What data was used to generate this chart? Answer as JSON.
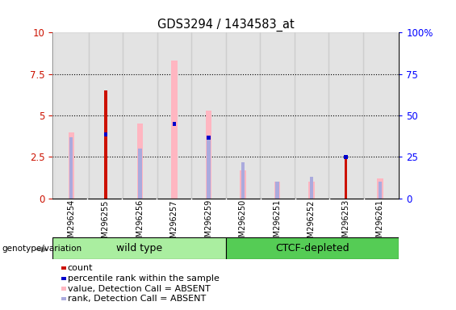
{
  "title": "GDS3294 / 1434583_at",
  "samples": [
    "GSM296254",
    "GSM296255",
    "GSM296256",
    "GSM296257",
    "GSM296259",
    "GSM296250",
    "GSM296251",
    "GSM296252",
    "GSM296253",
    "GSM296261"
  ],
  "groups": [
    "wild type",
    "wild type",
    "wild type",
    "wild type",
    "wild type",
    "CTCF-depleted",
    "CTCF-depleted",
    "CTCF-depleted",
    "CTCF-depleted",
    "CTCF-depleted"
  ],
  "count_values": [
    0.0,
    6.5,
    0.0,
    0.0,
    0.0,
    0.0,
    0.0,
    0.0,
    2.5,
    0.0
  ],
  "percentile_values": [
    0.0,
    4.0,
    0.0,
    4.6,
    3.8,
    0.0,
    0.0,
    0.0,
    2.6,
    0.0
  ],
  "value_absent": [
    4.0,
    0.0,
    4.5,
    8.3,
    5.3,
    1.7,
    1.0,
    1.0,
    0.0,
    1.2
  ],
  "rank_absent": [
    3.7,
    0.0,
    3.0,
    0.0,
    3.8,
    2.2,
    1.0,
    1.3,
    0.0,
    1.0
  ],
  "left_ylim": [
    0,
    10
  ],
  "right_ylim": [
    0,
    100
  ],
  "left_yticks": [
    0,
    2.5,
    5.0,
    7.5,
    10
  ],
  "right_yticks": [
    0,
    25,
    50,
    75,
    100
  ],
  "left_yticklabels": [
    "0",
    "2.5",
    "5",
    "7.5",
    "10"
  ],
  "right_yticklabels": [
    "0",
    "25",
    "50",
    "75",
    "100%"
  ],
  "count_color": "#CC1100",
  "percentile_color": "#0000CC",
  "value_absent_color": "#FFB6C1",
  "rank_absent_color": "#AAAADD",
  "wt_color": "#AAEEA0",
  "ctcf_color": "#55CC55",
  "tick_bg_color": "#C8C8C8"
}
